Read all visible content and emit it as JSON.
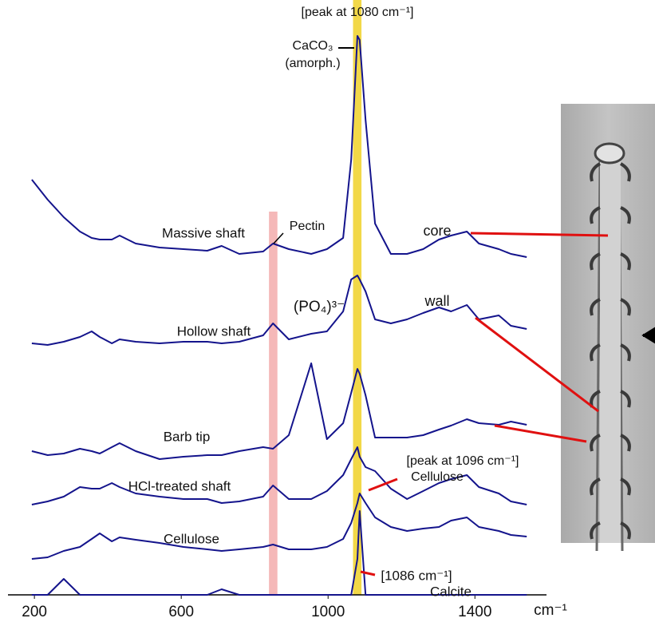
{
  "chart_data": {
    "type": "line",
    "color": "#14148c",
    "x": [
      193,
      236,
      280,
      324,
      356,
      378,
      411,
      432,
      476,
      541,
      606,
      671,
      710,
      758,
      823,
      850,
      893,
      954,
      997,
      1041,
      1063,
      1080,
      1086,
      1102,
      1128,
      1171,
      1215,
      1259,
      1302,
      1335,
      1378,
      1411,
      1465,
      1498,
      1541
    ],
    "series": [
      {
        "name": "Massive shaft",
        "values": [
          535,
          510,
          488,
          470,
          462,
          460,
          460,
          465,
          455,
          450,
          448,
          446,
          452,
          442,
          445,
          455,
          448,
          442,
          448,
          462,
          560,
          715,
          710,
          610,
          480,
          442,
          442,
          448,
          460,
          465,
          470,
          455,
          448,
          442,
          438
        ]
      },
      {
        "name": "Hollow shaft",
        "values": [
          330,
          328,
          332,
          338,
          345,
          338,
          330,
          335,
          332,
          330,
          332,
          332,
          330,
          332,
          340,
          355,
          335,
          342,
          345,
          370,
          410,
          415,
          410,
          395,
          360,
          355,
          360,
          368,
          375,
          370,
          378,
          360,
          365,
          352,
          348
        ]
      },
      {
        "name": "Barb tip",
        "values": [
          195,
          190,
          192,
          198,
          195,
          192,
          200,
          205,
          195,
          185,
          188,
          190,
          190,
          195,
          200,
          198,
          215,
          305,
          210,
          230,
          268,
          298,
          292,
          265,
          212,
          212,
          212,
          215,
          222,
          227,
          235,
          230,
          228,
          232,
          228
        ]
      },
      {
        "name": "HCl-treated shaft",
        "values": [
          128,
          132,
          138,
          150,
          148,
          148,
          155,
          150,
          142,
          138,
          135,
          135,
          130,
          132,
          138,
          152,
          135,
          135,
          145,
          165,
          185,
          200,
          188,
          175,
          170,
          148,
          135,
          145,
          155,
          160,
          165,
          150,
          142,
          132,
          128
        ]
      },
      {
        "name": "Cellulose",
        "values": [
          60,
          62,
          70,
          75,
          85,
          92,
          82,
          87,
          84,
          80,
          75,
          72,
          70,
          72,
          75,
          78,
          72,
          72,
          75,
          85,
          105,
          130,
          142,
          130,
          112,
          100,
          95,
          98,
          100,
          108,
          112,
          100,
          95,
          90,
          88
        ]
      },
      {
        "name": "Calcite",
        "values": [
          15,
          15,
          35,
          15,
          15,
          15,
          15,
          15,
          15,
          15,
          15,
          15,
          22,
          15,
          15,
          15,
          15,
          15,
          15,
          15,
          15,
          60,
          120,
          15,
          15,
          15,
          15,
          15,
          15,
          15,
          15,
          15,
          15,
          15,
          15
        ]
      }
    ],
    "xlim": [
      128,
      1595
    ],
    "ylim": [
      0,
      760
    ],
    "xticks": [
      200,
      600,
      1000,
      1400
    ],
    "x_label": "cm⁻¹",
    "bands": [
      {
        "xrange": [
          1068,
          1091
        ],
        "yrange": [
          15,
          760
        ],
        "color": "#f2d848"
      },
      {
        "xrange": [
          839,
          862
        ],
        "yrange": [
          15,
          495
        ],
        "color": "#f5b8b8"
      }
    ],
    "annotations": [
      "[peak at 1080 cm⁻¹]",
      "CaCO₃",
      "(amorph.)",
      "Pectin",
      "(PO₄)³⁻",
      "core",
      "wall",
      "[peak at 1096 cm⁻¹]",
      "Cellulose",
      "[1086 cm⁻¹]"
    ]
  }
}
